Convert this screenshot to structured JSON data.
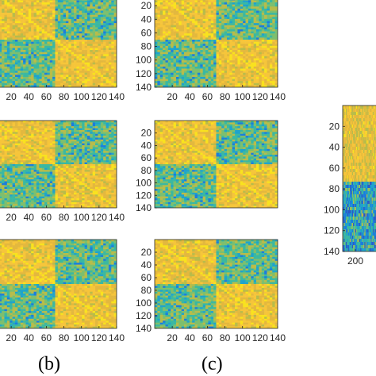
{
  "labels": {
    "b": "(b)",
    "c": "(c)"
  },
  "chart_data": [
    {
      "type": "heatmap",
      "panel": "row1-left",
      "xticks": [
        20,
        40,
        60,
        80,
        100,
        120,
        140
      ],
      "yticks": [],
      "xlim": [
        0,
        140
      ],
      "ylim": [
        140,
        0
      ],
      "blocks": [
        {
          "start": 1,
          "end": 70
        },
        {
          "start": 71,
          "end": 140
        }
      ],
      "colormap": "parula"
    },
    {
      "type": "heatmap",
      "panel": "row1-right",
      "xticks": [
        20,
        40,
        60,
        80,
        100,
        120,
        140
      ],
      "yticks": [
        20,
        40,
        60,
        80,
        100,
        120,
        140
      ],
      "xlim": [
        0,
        140
      ],
      "ylim": [
        140,
        0
      ],
      "blocks": [
        {
          "start": 1,
          "end": 70
        },
        {
          "start": 71,
          "end": 140
        }
      ],
      "colormap": "parula"
    },
    {
      "type": "heatmap",
      "panel": "row2-left",
      "xticks": [
        20,
        40,
        60,
        80,
        100,
        120,
        140
      ],
      "yticks": [],
      "xlim": [
        0,
        140
      ],
      "ylim": [
        140,
        0
      ],
      "blocks": [
        {
          "start": 1,
          "end": 70
        },
        {
          "start": 71,
          "end": 140
        }
      ],
      "colormap": "parula"
    },
    {
      "type": "heatmap",
      "panel": "row2-right",
      "xticks": [],
      "yticks": [
        20,
        40,
        60,
        80,
        100,
        120,
        140
      ],
      "xlim": [
        0,
        140
      ],
      "ylim": [
        140,
        0
      ],
      "blocks": [
        {
          "start": 1,
          "end": 70
        },
        {
          "start": 71,
          "end": 140
        }
      ],
      "colormap": "parula"
    },
    {
      "type": "heatmap",
      "panel": "row3-left",
      "xticks": [
        20,
        40,
        60,
        80,
        100,
        120,
        140
      ],
      "yticks": [],
      "xlim": [
        0,
        140
      ],
      "ylim": [
        140,
        0
      ],
      "blocks": [
        {
          "start": 1,
          "end": 70
        },
        {
          "start": 71,
          "end": 140
        }
      ],
      "colormap": "parula"
    },
    {
      "type": "heatmap",
      "panel": "row3-right",
      "xticks": [
        20,
        40,
        60,
        80,
        100,
        120,
        140
      ],
      "yticks": [
        20,
        40,
        60,
        80,
        100,
        120,
        140
      ],
      "xlim": [
        0,
        140
      ],
      "ylim": [
        140,
        0
      ],
      "blocks": [
        {
          "start": 1,
          "end": 70
        },
        {
          "start": 71,
          "end": 140
        }
      ],
      "colormap": "parula"
    },
    {
      "type": "heatmap",
      "panel": "right-tall",
      "xticks": [
        "200"
      ],
      "yticks": [
        20,
        40,
        60,
        80,
        100,
        120,
        140
      ],
      "xlim": [
        0,
        140
      ],
      "ylim": [
        140,
        0
      ],
      "blocks": [
        {
          "start": 1,
          "end": 72
        },
        {
          "start": 73,
          "end": 140
        }
      ],
      "colormap": "parula"
    }
  ]
}
